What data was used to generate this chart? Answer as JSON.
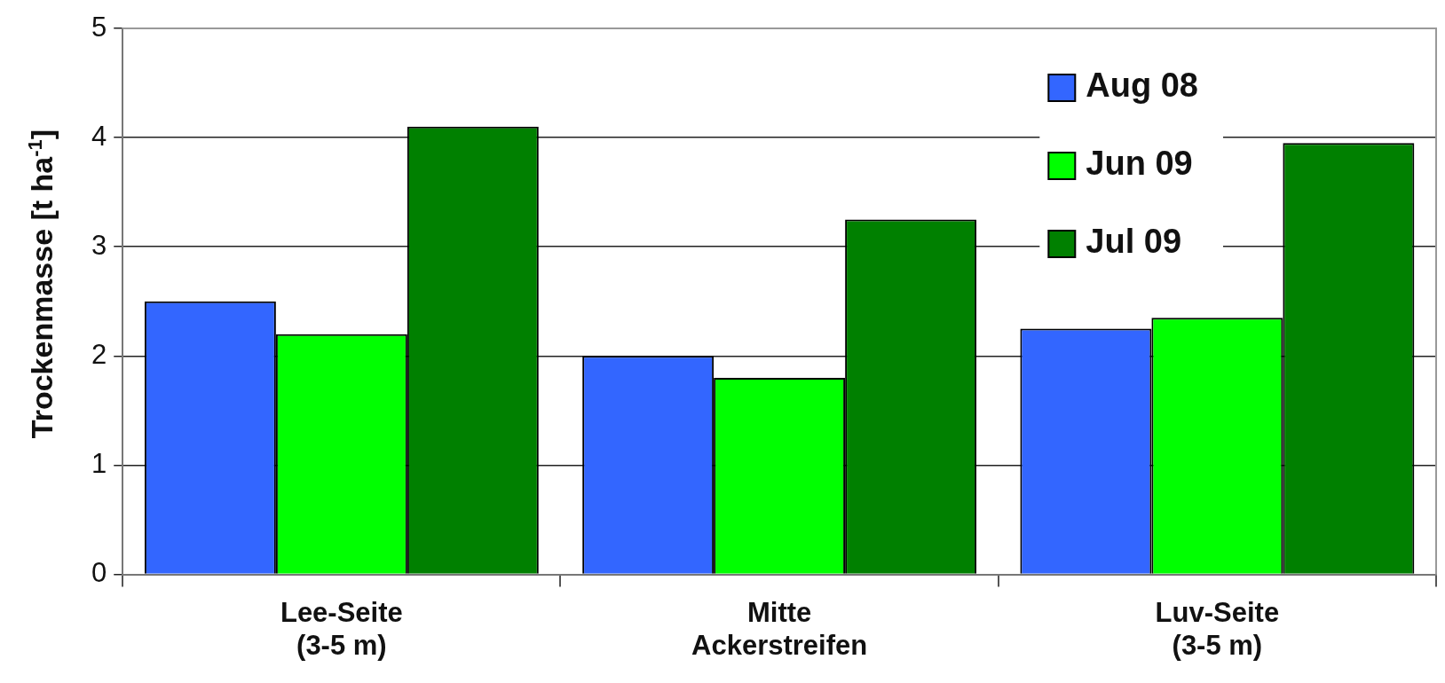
{
  "chart_data": {
    "type": "bar",
    "ylabel": "Trockenmasse [t ha$^{-1}$]",
    "categories": [
      "Lee-Seite\n(3-5 m)",
      "Mitte\nAckerstreifen",
      "Luv-Seite\n(3-5 m)"
    ],
    "series": [
      {
        "name": "Aug 08",
        "color": "#3366ff",
        "values": [
          2.5,
          2.0,
          2.25
        ]
      },
      {
        "name": "Jun 09",
        "color": "#00ff00",
        "values": [
          2.2,
          1.8,
          2.35
        ]
      },
      {
        "name": "Jul 09",
        "color": "#008000",
        "values": [
          4.1,
          3.25,
          3.95
        ]
      }
    ],
    "ylim": [
      0,
      5
    ],
    "yticks": [
      0,
      1,
      2,
      3,
      4,
      5
    ],
    "grid": "y",
    "legend": "top right"
  }
}
